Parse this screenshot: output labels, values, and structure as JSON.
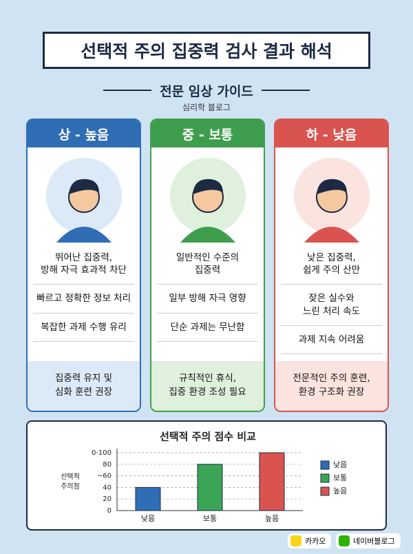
{
  "header": {
    "title": "선택적 주의 집중력 검사 결과 해석",
    "subtitle": "전문 임상 가이드",
    "source": "심리학 블로그"
  },
  "cards": [
    {
      "heading": "상 - 높음",
      "color": "#2f6db5",
      "light": "#dce9f7",
      "items": [
        "뛰어난 집중력,\n방해 자극 효과적 차단",
        "빠르고 정확한 정보 처리",
        "복잡한 과제 수행 유리"
      ],
      "recommendation": "집중력 유지 및\n심화 훈련 권장"
    },
    {
      "heading": "중 - 보통",
      "color": "#3f9e4d",
      "light": "#dff0dc",
      "items": [
        "일반적인 수준의\n집중력",
        "일부 방해 자극 영향",
        "단순 과제는 무난함"
      ],
      "recommendation": "규칙적인 휴식,\n집중 환경 조성 필요"
    },
    {
      "heading": "하 - 낮음",
      "color": "#d9534f",
      "light": "#fbe3e0",
      "items": [
        "낮은 집중력,\n쉽게 주의 산만",
        "잦은 실수와\n느린 처리 속도",
        "과제 지속 어려움"
      ],
      "recommendation": "전문적인 주의 훈련,\n환경 구조화 권장"
    }
  ],
  "chart_data": {
    "type": "bar",
    "title": "선택적 주의 점수 비교",
    "y_label": "선택적\n주의점",
    "categories": [
      "낮음",
      "보통",
      "높음"
    ],
    "values": [
      40,
      80,
      100
    ],
    "colors": [
      "#2f6db5",
      "#3aa655",
      "#d9534f"
    ],
    "ylim": [
      0,
      100
    ],
    "yticks": [
      0,
      20,
      40,
      {
        "value": 60,
        "label": "~60"
      },
      80,
      {
        "value": 100,
        "label": "0-100"
      }
    ],
    "grid": true,
    "legend": "right"
  },
  "footer": {
    "badges": [
      "카카오",
      "네이버블로그"
    ]
  }
}
